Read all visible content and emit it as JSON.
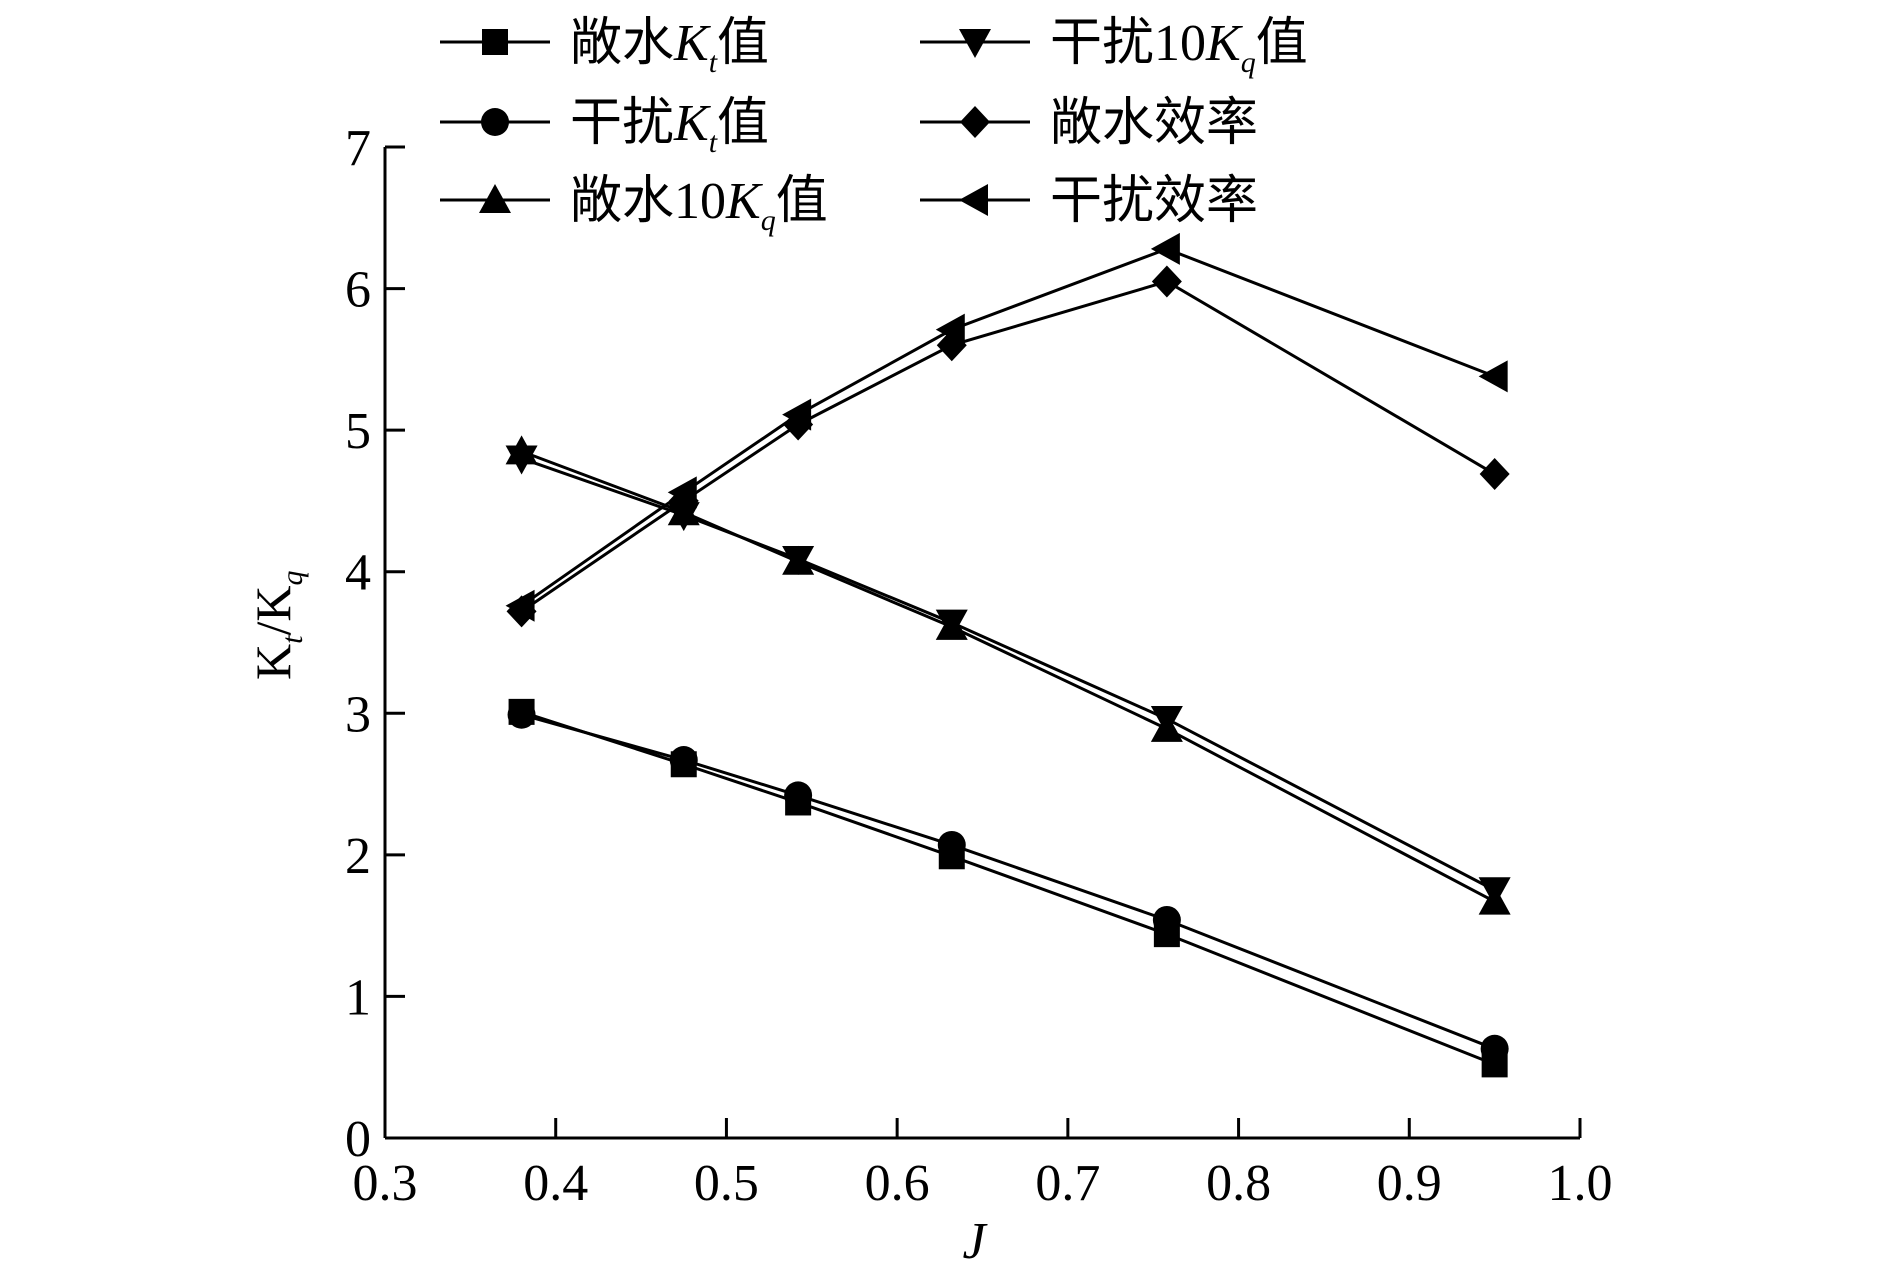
{
  "chart_data": {
    "type": "line",
    "xlabel": "J",
    "ylabel": "Kt/Kq",
    "ylabel_parts": [
      "K",
      "t",
      "/K",
      "q"
    ],
    "xlim": [
      0.3,
      1.0
    ],
    "ylim": [
      0,
      7
    ],
    "xticks": [
      0.3,
      0.4,
      0.5,
      0.6,
      0.7,
      0.8,
      0.9,
      1.0
    ],
    "xtick_labels": [
      "0.3",
      "0.4",
      "0.5",
      "0.6",
      "0.7",
      "0.8",
      "0.9",
      "1.0"
    ],
    "yticks": [
      0,
      1,
      2,
      3,
      4,
      5,
      6,
      7
    ],
    "ytick_labels": [
      "0",
      "1",
      "2",
      "3",
      "4",
      "5",
      "6",
      "7"
    ],
    "grid": false,
    "legend_placement": "top",
    "x": [
      0.38,
      0.475,
      0.542,
      0.632,
      0.758,
      0.95
    ],
    "series": [
      {
        "name": "敞水Kt值",
        "label_parts": [
          "敞水",
          "K",
          "t",
          "值"
        ],
        "marker": "square",
        "values": [
          3.01,
          2.64,
          2.37,
          1.99,
          1.44,
          0.52
        ]
      },
      {
        "name": "干扰Kt值",
        "label_parts": [
          "干扰",
          "K",
          "t",
          "值"
        ],
        "marker": "circle",
        "values": [
          2.99,
          2.67,
          2.42,
          2.07,
          1.54,
          0.63
        ]
      },
      {
        "name": "敞水10Kq值",
        "label_parts": [
          "敞水10",
          "K",
          "q",
          "值"
        ],
        "marker": "triangle-up",
        "values": [
          4.85,
          4.42,
          4.07,
          3.61,
          2.89,
          1.67
        ]
      },
      {
        "name": "干扰10Kq值",
        "label_parts": [
          "干扰10",
          "K",
          "q",
          "值"
        ],
        "marker": "triangle-down",
        "values": [
          4.8,
          4.4,
          4.09,
          3.64,
          2.96,
          1.75
        ]
      },
      {
        "name": "敞水效率",
        "label_parts": [
          "敞水效率",
          "",
          "",
          ""
        ],
        "marker": "diamond",
        "values": [
          3.72,
          4.5,
          5.04,
          5.6,
          6.05,
          4.69
        ]
      },
      {
        "name": "干扰效率",
        "label_parts": [
          "干扰效率",
          "",
          "",
          ""
        ],
        "marker": "triangle-left",
        "values": [
          3.76,
          4.56,
          5.11,
          5.71,
          6.28,
          5.38
        ]
      }
    ]
  }
}
